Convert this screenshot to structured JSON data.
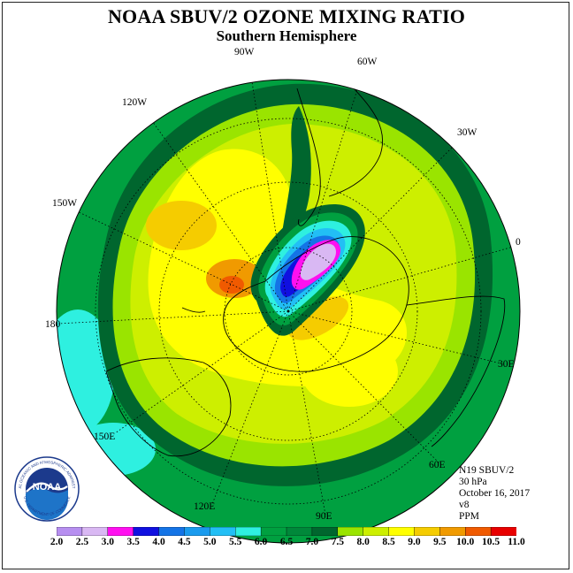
{
  "header": {
    "title": "NOAA SBUV/2 OZONE MIXING RATIO",
    "subtitle": "Southern Hemisphere"
  },
  "map": {
    "projection": "polar stereographic, south pole centered",
    "longitude_labels": [
      "90W",
      "60W",
      "30W",
      "0",
      "30E",
      "60E",
      "90E",
      "120E",
      "150E",
      "180",
      "150W",
      "120W"
    ],
    "features": [
      "Antarctica coastline",
      "South America",
      "Africa",
      "Australia",
      "New Zealand",
      "latitude circles",
      "longitude meridians"
    ],
    "ozone_field_ppm": {
      "outer_band_mid_latitudes": "6.0 - 7.0",
      "middle_ring": "7.0 - 8.0",
      "inner_ring": "8.0 - 9.0",
      "orange_maxima_near_150W_and_180": "9.0 - 10.0",
      "ozone_hole_core_near_0_to_30W": "2.0 - 3.5",
      "tropical_patches_near_150E_and_180": "5.5 - 6.0"
    }
  },
  "info": {
    "satellite": "N19 SBUV/2",
    "level": "30 hPa",
    "date": "October 16, 2017",
    "version": "v8",
    "units": "PPM"
  },
  "logo": {
    "text": "NOAA",
    "ring_text": "NATIONAL OCEANIC AND ATMOSPHERIC ADMINISTRATION",
    "bottom_text": "U.S. DEPARTMENT OF COMMERCE"
  },
  "colorbar": {
    "labels": [
      "2.0",
      "2.5",
      "3.0",
      "3.5",
      "4.0",
      "4.5",
      "5.0",
      "5.5",
      "6.0",
      "6.5",
      "7.0",
      "7.5",
      "8.0",
      "8.5",
      "9.0",
      "9.5",
      "10.0",
      "10.5",
      "11.0"
    ],
    "colors": [
      "#b78ff0",
      "#d9b8f3",
      "#ff10f0",
      "#1010e0",
      "#1474e6",
      "#1a9bee",
      "#22bff5",
      "#2ef0e0",
      "#00a040",
      "#00883a",
      "#00662e",
      "#9ae400",
      "#cdef00",
      "#ffff00",
      "#f5cc00",
      "#f09a00",
      "#f05a00",
      "#e80000",
      "#8a4a2a"
    ]
  }
}
